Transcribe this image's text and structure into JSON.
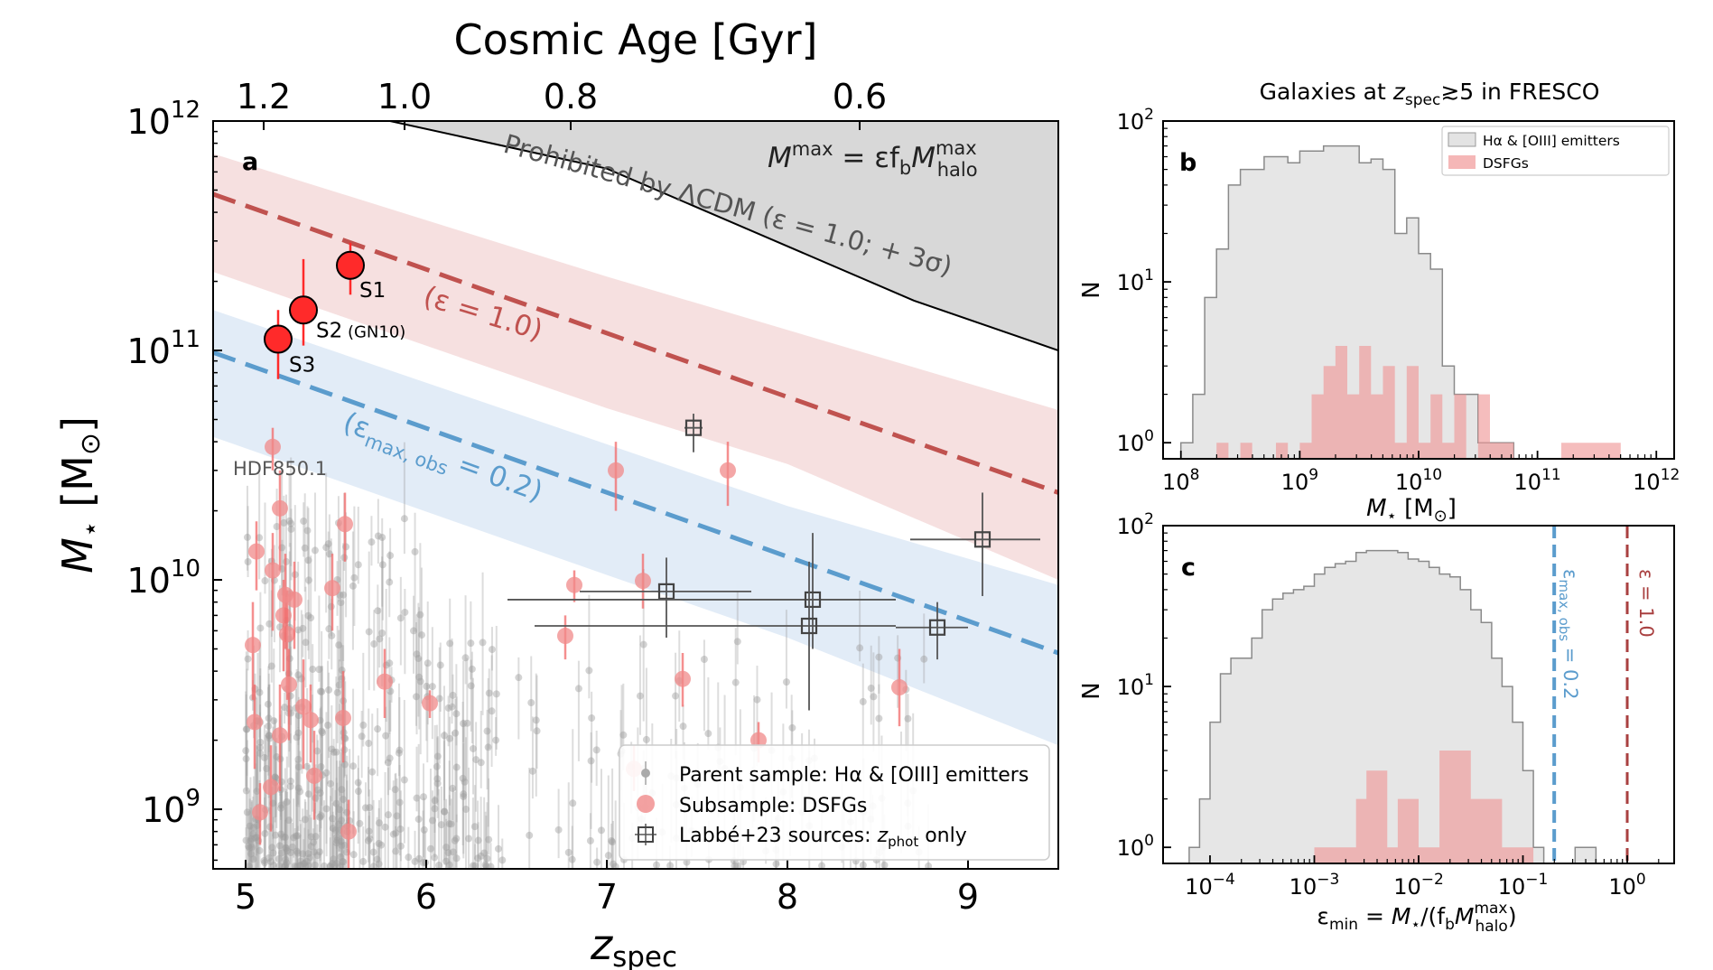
{
  "chart_data": [
    {
      "panel": "a",
      "type": "scatter",
      "xlabel_main": "z",
      "xlabel_sub": "spec",
      "ylabel_main": "M",
      "ylabel_sub": "⋆",
      "ylabel_units": "[M",
      "ylabel_units_sub": "⊙",
      "ylabel_units_close": "]",
      "xlim": [
        4.82,
        9.5
      ],
      "ylim": [
        550000000.0,
        1000000000000.0
      ],
      "yscale": "log",
      "xticks": [
        5,
        6,
        7,
        8,
        9
      ],
      "yticks": [
        {
          "exp": "9"
        },
        {
          "exp": "10"
        },
        {
          "exp": "11"
        },
        {
          "exp": "12"
        }
      ],
      "top_axis": {
        "label": "Cosmic Age [Gyr]",
        "ticks": [
          {
            "label": "1.2",
            "z": 5.1
          },
          {
            "label": "1.0",
            "z": 5.88
          },
          {
            "label": "0.8",
            "z": 6.8
          },
          {
            "label": "0.6",
            "z": 8.4
          }
        ]
      },
      "prohibited_label": "Prohibited by ΛCDM (ε = 1.0; + 3σ)",
      "formula_label": {
        "lhs": "M",
        "lhs_sup": "max",
        "rhs": "= εf",
        "rhs_sub": "b",
        "rhs2": "M",
        "rhs2_sup": "max",
        "rhs2_sub": "halo"
      },
      "eps10_label": "(ε = 1.0)",
      "eps02_label": "(ε",
      "eps02_sub": "max, obs",
      "eps02_value": " = 0.2)",
      "hdf_label": "HDF850.1",
      "prohibited_boundary": [
        [
          5.8,
          1000000000000.0
        ],
        [
          7.0,
          620000000000.0
        ],
        [
          8.7,
          165000000000.0
        ],
        [
          9.5,
          100000000000.0
        ]
      ],
      "eps10_line": [
        [
          4.82,
          480000000000.0
        ],
        [
          9.5,
          24000000000.0
        ]
      ],
      "eps10_band_upper": [
        [
          4.82,
          720000000000.0
        ],
        [
          7.0,
          210000000000.0
        ],
        [
          9.5,
          55000000000.0
        ]
      ],
      "eps10_band_lower": [
        [
          4.82,
          220000000000.0
        ],
        [
          7.0,
          56000000000.0
        ],
        [
          8.0,
          32000000000.0
        ],
        [
          9.5,
          10000000000.0
        ]
      ],
      "eps02_line": [
        [
          4.82,
          98000000000.0
        ],
        [
          9.5,
          4800000000.0
        ]
      ],
      "eps02_band_upper": [
        [
          4.82,
          150000000000.0
        ],
        [
          7.0,
          39000000000.0
        ],
        [
          8.0,
          21000000000.0
        ],
        [
          9.5,
          9500000000.0
        ]
      ],
      "eps02_band_lower": [
        [
          4.82,
          42000000000.0
        ],
        [
          7.0,
          10500000000.0
        ],
        [
          8.0,
          5600000000.0
        ],
        [
          9.5,
          1900000000.0
        ]
      ],
      "highlight_sources": [
        {
          "name": "S1",
          "z": 5.58,
          "m": 235000000000.0,
          "lo": 175000000000.0,
          "hi": 295000000000.0
        },
        {
          "name": "S2",
          "name_note": "(GN10)",
          "z": 5.32,
          "m": 150000000000.0,
          "lo": 105000000000.0,
          "hi": 250000000000.0
        },
        {
          "name": "S3",
          "z": 5.18,
          "m": 112000000000.0,
          "lo": 75000000000.0,
          "hi": 150000000000.0
        }
      ],
      "dsfg": [
        [
          5.15,
          38000000000.0,
          30000000000.0,
          46000000000.0
        ],
        [
          5.19,
          20500000000.0,
          11000000000.0,
          30000000000.0
        ],
        [
          5.06,
          13300000000.0,
          9000000000.0,
          18000000000.0
        ],
        [
          5.15,
          11000000000.0,
          6000000000.0,
          16000000000.0
        ],
        [
          5.21,
          7000000000.0,
          4000000000.0,
          10000000000.0
        ],
        [
          5.23,
          5800000000.0,
          3000000000.0,
          9000000000.0
        ],
        [
          5.04,
          5200000000.0,
          3000000000.0,
          8000000000.0
        ],
        [
          5.22,
          8600000000.0,
          5000000000.0,
          13000000000.0
        ],
        [
          5.24,
          3500000000.0,
          2000000000.0,
          5000000000.0
        ],
        [
          5.27,
          8200000000.0,
          5000000000.0,
          12000000000.0
        ],
        [
          5.32,
          2800000000.0,
          1500000000.0,
          4500000000.0
        ],
        [
          5.19,
          2100000000.0,
          1200000000.0,
          3500000000.0
        ],
        [
          5.05,
          2400000000.0,
          1500000000.0,
          3500000000.0
        ],
        [
          5.36,
          2450000000.0,
          1600000000.0,
          3500000000.0
        ],
        [
          5.38,
          1400000000.0,
          900000000.0,
          2200000000.0
        ],
        [
          5.14,
          1250000000.0,
          800000000.0,
          1900000000.0
        ],
        [
          5.08,
          970000000.0,
          700000000.0,
          1300000000.0
        ],
        [
          5.55,
          17500000000.0,
          12000000000.0,
          24000000000.0
        ],
        [
          5.48,
          9200000000.0,
          6000000000.0,
          13000000000.0
        ],
        [
          5.54,
          2500000000.0,
          1600000000.0,
          4000000000.0
        ],
        [
          5.57,
          800000000.0,
          550000000.0,
          1100000000.0
        ],
        [
          5.77,
          3600000000.0,
          2500000000.0,
          5000000000.0
        ],
        [
          6.02,
          2900000000.0,
          2500000000.0,
          3300000000.0
        ],
        [
          6.82,
          9500000000.0,
          8000000000.0,
          11000000000.0
        ],
        [
          6.77,
          5700000000.0,
          4500000000.0,
          7000000000.0
        ],
        [
          7.05,
          30000000000.0,
          20000000000.0,
          40000000000.0
        ],
        [
          7.2,
          9900000000.0,
          7500000000.0,
          13000000000.0
        ],
        [
          7.15,
          1500000000.0,
          1200000000.0,
          1900000000.0
        ],
        [
          7.42,
          3700000000.0,
          2800000000.0,
          4800000000.0
        ],
        [
          7.67,
          30000000000.0,
          21000000000.0,
          40000000000.0
        ],
        [
          7.84,
          2000000000.0,
          1600000000.0,
          2400000000.0
        ],
        [
          8.62,
          3400000000.0,
          2300000000.0,
          5000000000.0
        ]
      ],
      "labbe": [
        {
          "z": 7.48,
          "m": 46000000000.0,
          "xlo": 7.43,
          "xhi": 7.53,
          "ylo": 36000000000.0,
          "yhi": 53000000000.0
        },
        {
          "z": 7.33,
          "m": 8900000000.0,
          "xlo": 6.85,
          "xhi": 7.8,
          "ylo": 5600000000.0,
          "yhi": 12500000000.0
        },
        {
          "z": 8.14,
          "m": 8200000000.0,
          "xlo": 6.45,
          "xhi": 8.6,
          "ylo": 5000000000.0,
          "yhi": 16000000000.0
        },
        {
          "z": 8.12,
          "m": 6300000000.0,
          "xlo": 6.6,
          "xhi": 8.6,
          "ylo": 2700000000.0,
          "yhi": 12000000000.0
        },
        {
          "z": 8.83,
          "m": 6200000000.0,
          "xlo": 8.6,
          "xhi": 9.0,
          "ylo": 4500000000.0,
          "yhi": 8000000000.0
        },
        {
          "z": 9.08,
          "m": 15000000000.0,
          "xlo": 8.68,
          "xhi": 9.4,
          "ylo": 8500000000.0,
          "yhi": 24000000000.0
        }
      ],
      "legend": [
        {
          "label": "Parent sample: Hα & [OIII] emitters"
        },
        {
          "label": "Subsample: DSFGs"
        },
        {
          "label": "Labbé+23 sources: ",
          "label_ital": "z",
          "label_sub": "phot",
          "label_end": " only"
        }
      ],
      "colors": {
        "red_line": "#c0524f",
        "red_band": "#efc6c6",
        "blue_line": "#5b9ccd",
        "blue_band": "#cfe0f2",
        "prohibited": "#d8d8d8",
        "dsfg": "#f08a8a",
        "source": "#ff2a2a",
        "parent": "#9d9d9d"
      }
    },
    {
      "panel": "b",
      "type": "bar",
      "title": "Galaxies at ",
      "title_it": "z",
      "title_sub": "spec",
      "title_rest": "≳5 in FRESCO",
      "xscale": "log",
      "yscale": "log",
      "xlim_log10": [
        7.85,
        12.15
      ],
      "ylim_log10": [
        -0.1,
        2
      ],
      "xlabel": "M",
      "xlabel_sub": "⋆",
      "xlabel_units": "[M",
      "xlabel_units_sub": "⊙",
      "xlabel_units_close": "]",
      "ylabel": "N",
      "xticks_exp": [
        "8",
        "9",
        "10",
        "11",
        "12"
      ],
      "yticks_exp": [
        "0",
        "1",
        "2"
      ],
      "bin_log10_start": 8.0,
      "bin_width_dex": 0.1,
      "parent_counts": [
        1,
        2,
        8,
        16,
        40,
        50,
        50,
        60,
        60,
        55,
        65,
        65,
        70,
        70,
        70,
        55,
        58,
        50,
        20,
        25,
        15,
        12,
        3,
        2,
        2,
        1,
        1,
        1,
        0,
        0,
        0,
        0,
        0,
        0,
        0,
        0,
        0,
        0,
        0,
        0
      ],
      "dsfg_counts": [
        0,
        0,
        0,
        1,
        0,
        1,
        0,
        0,
        1,
        0,
        1,
        2,
        3,
        4,
        2,
        4,
        2,
        3,
        1,
        3,
        1,
        2,
        1,
        2,
        0,
        2,
        1,
        1,
        0,
        0,
        0,
        0,
        1,
        1,
        1,
        1,
        1,
        0,
        0,
        0
      ],
      "legend": [
        "Hα & [OIII] emitters",
        "DSFGs"
      ]
    },
    {
      "panel": "c",
      "type": "bar",
      "xscale": "log",
      "yscale": "log",
      "xlim_log10": [
        -4.45,
        0.45
      ],
      "ylim_log10": [
        -0.1,
        2
      ],
      "xlabel": "ε",
      "xlabel_sub": "min",
      "xlabel_rest": " = M",
      "xlabel_sub2": "⋆",
      "xlabel_rest2": "/(f",
      "xlabel_sub3": "b",
      "xlabel_rest3": "M",
      "xlabel_sup": "max",
      "xlabel_sub4": "halo",
      "xlabel_end": ")",
      "ylabel": "N",
      "xticks_exp": [
        "−4",
        "−3",
        "−2",
        "−1",
        "0"
      ],
      "yticks_exp": [
        "0",
        "1",
        "2"
      ],
      "bin_log10_start": -4.2,
      "bin_width_dex": 0.1,
      "parent_counts": [
        1,
        2,
        6,
        12,
        15,
        15,
        20,
        30,
        35,
        38,
        40,
        42,
        50,
        55,
        58,
        60,
        68,
        70,
        70,
        70,
        68,
        62,
        60,
        55,
        50,
        48,
        40,
        30,
        25,
        15,
        10,
        6,
        3,
        1,
        0,
        0,
        0,
        1,
        1,
        0,
        0
      ],
      "dsfg_counts": [
        0,
        0,
        0,
        0,
        0,
        0,
        0,
        0,
        0,
        0,
        0,
        0,
        1,
        1,
        1,
        1,
        2,
        3,
        3,
        1,
        2,
        2,
        1,
        1,
        4,
        4,
        4,
        2,
        2,
        2,
        1,
        1,
        1,
        0,
        0,
        0,
        0,
        0,
        0,
        0,
        0
      ],
      "vline_eps02": {
        "log10": -0.7,
        "label": "ε",
        "label_sub": "max, obs",
        "label_rest": " = 0.2"
      },
      "vline_eps10": {
        "log10": 0.0,
        "label": "ε = 1.0"
      }
    }
  ]
}
